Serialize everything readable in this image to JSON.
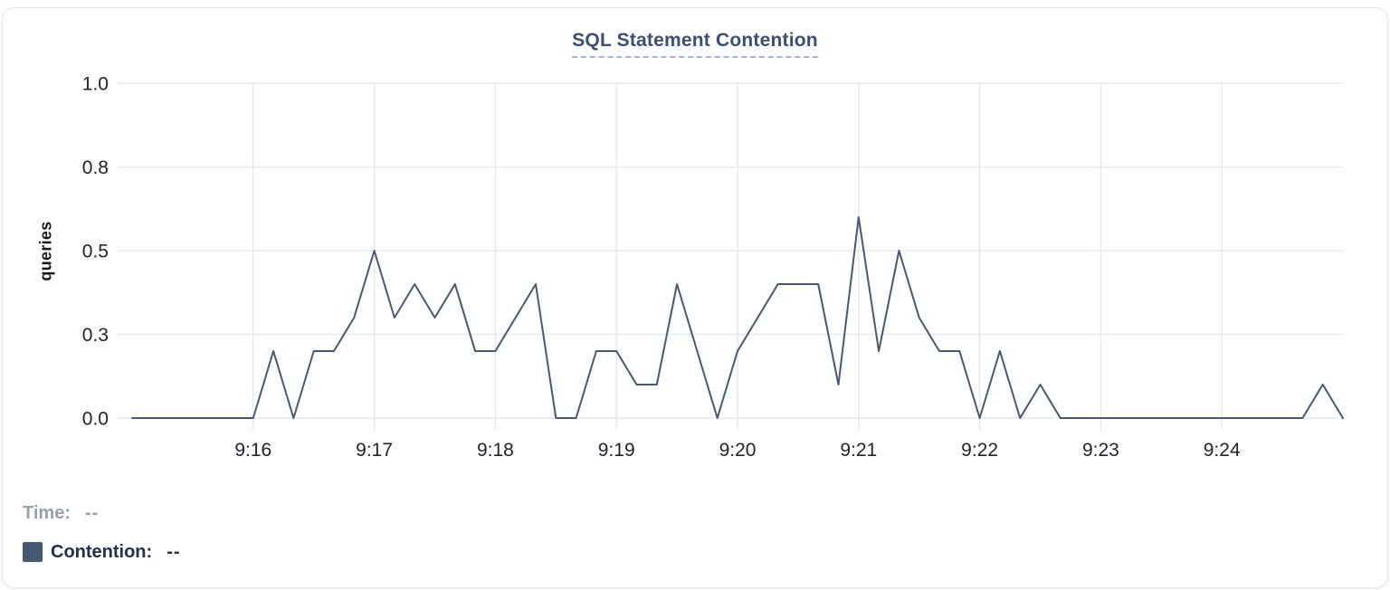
{
  "card": {
    "title": "SQL Statement Contention"
  },
  "legend": {
    "time_label": "Time:",
    "time_value": "--",
    "contention_label": "Contention:",
    "contention_value": "--"
  },
  "colors": {
    "series_navy": "#475872",
    "title_navy": "#3d4e71",
    "legend_navy": "#22304f",
    "muted_gray": "#9aa1aa",
    "tick_text": "#20242b",
    "grid": "#e9eaec"
  },
  "chart_data": {
    "type": "line",
    "title": "SQL Statement Contention",
    "xlabel": "",
    "ylabel": "queries",
    "ylim": [
      0,
      1
    ],
    "grid": true,
    "legend_position": "bottom-left",
    "x_range": [
      "9:15:00",
      "9:25:00"
    ],
    "x_ticks": [
      "9:16",
      "9:17",
      "9:18",
      "9:19",
      "9:20",
      "9:21",
      "9:22",
      "9:23",
      "9:24"
    ],
    "y_ticks": [
      {
        "value": 0,
        "label": "0.0"
      },
      {
        "value": 0.25,
        "label": "0.3"
      },
      {
        "value": 0.5,
        "label": "0.5"
      },
      {
        "value": 0.75,
        "label": "0.8"
      },
      {
        "value": 1,
        "label": "1.0"
      }
    ],
    "series": [
      {
        "name": "Contention",
        "unit": "queries",
        "color": "#475872",
        "x": [
          "9:15:00",
          "9:15:10",
          "9:15:20",
          "9:15:30",
          "9:15:40",
          "9:15:50",
          "9:16:00",
          "9:16:10",
          "9:16:20",
          "9:16:30",
          "9:16:40",
          "9:16:50",
          "9:17:00",
          "9:17:10",
          "9:17:20",
          "9:17:30",
          "9:17:40",
          "9:17:50",
          "9:18:00",
          "9:18:10",
          "9:18:20",
          "9:18:30",
          "9:18:40",
          "9:18:50",
          "9:19:00",
          "9:19:10",
          "9:19:20",
          "9:19:30",
          "9:19:40",
          "9:19:50",
          "9:20:00",
          "9:20:10",
          "9:20:20",
          "9:20:30",
          "9:20:40",
          "9:20:50",
          "9:21:00",
          "9:21:10",
          "9:21:20",
          "9:21:30",
          "9:21:40",
          "9:21:50",
          "9:22:00",
          "9:22:10",
          "9:22:20",
          "9:22:30",
          "9:22:40",
          "9:22:50",
          "9:23:00",
          "9:23:10",
          "9:23:20",
          "9:23:30",
          "9:23:40",
          "9:23:50",
          "9:24:00",
          "9:24:10",
          "9:24:20",
          "9:24:30",
          "9:24:40",
          "9:24:50",
          "9:25:00"
        ],
        "y": [
          0,
          0,
          0,
          0,
          0,
          0,
          0,
          0.2,
          0,
          0.2,
          0.2,
          0.3,
          0.5,
          0.3,
          0.4,
          0.3,
          0.4,
          0.2,
          0.2,
          0.3,
          0.4,
          0,
          0,
          0.2,
          0.2,
          0.1,
          0.1,
          0.4,
          0.2,
          0,
          0.2,
          0.3,
          0.4,
          0.4,
          0.4,
          0.1,
          0.6,
          0.2,
          0.5,
          0.3,
          0.2,
          0.2,
          0,
          0.2,
          0,
          0.1,
          0,
          0,
          0,
          0,
          0,
          0,
          0,
          0,
          0,
          0,
          0,
          0,
          0,
          0.1,
          0
        ]
      }
    ]
  }
}
